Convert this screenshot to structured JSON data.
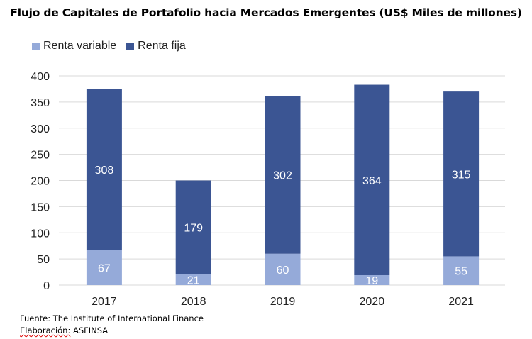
{
  "chart_data": {
    "type": "bar",
    "stacked": true,
    "title": "Flujo de Capitales de Portafolio hacia Mercados Emergentes (US$ Miles de millones)",
    "categories": [
      "2017",
      "2018",
      "2019",
      "2020",
      "2021"
    ],
    "series": [
      {
        "name": "Renta variable",
        "values": [
          67,
          21,
          60,
          19,
          55
        ],
        "color": "#95aad9"
      },
      {
        "name": "Renta fija",
        "values": [
          308,
          179,
          302,
          364,
          315
        ],
        "color": "#3b5593"
      }
    ],
    "ylim": [
      0,
      400
    ],
    "yticks": [
      "0",
      "50",
      "100",
      "150",
      "200",
      "250",
      "300",
      "350",
      "400"
    ],
    "grid": true,
    "legend": "top-left"
  },
  "footer": {
    "source": "Fuente: The Institute of International Finance",
    "elab_label": "Elaboración:",
    "elab_value": " ASFINSA"
  }
}
